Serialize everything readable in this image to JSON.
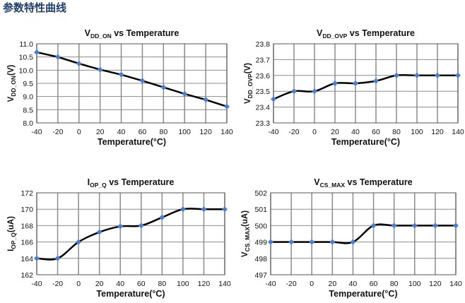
{
  "page": {
    "title": "参数特性曲线",
    "title_color": "#1f3d6b"
  },
  "style": {
    "grid_color": "#8c8c8c",
    "line_color": "#000000",
    "marker_color": "#4a7fd0"
  },
  "chart_data": [
    {
      "type": "line",
      "title": {
        "main": "V",
        "sub": "DD_ON",
        "rest": " vs Temperature"
      },
      "xlabel": "Temperature(°C)",
      "ylabel": {
        "main": "V",
        "sub": "DD_ON",
        "rest": "(V)"
      },
      "x": [
        -40,
        -20,
        0,
        20,
        40,
        60,
        80,
        100,
        120,
        140
      ],
      "y": [
        10.68,
        10.5,
        10.25,
        10.02,
        9.83,
        9.6,
        9.35,
        9.1,
        8.88,
        8.62
      ],
      "xlim": [
        -40,
        140
      ],
      "ylim": [
        8.0,
        11.0
      ],
      "xticks": [
        "-40",
        "-20",
        "0",
        "20",
        "40",
        "60",
        "80",
        "100",
        "120",
        "140"
      ],
      "yticks": [
        "8.0",
        "8.5",
        "9.0",
        "9.5",
        "10.0",
        "10.5",
        "11.0"
      ],
      "grid": true,
      "smooth": false
    },
    {
      "type": "line",
      "title": {
        "main": "V",
        "sub": "DD_OVP",
        "rest": " vs Temperature"
      },
      "xlabel": "Temperature(°C)",
      "ylabel": {
        "main": "V",
        "sub": "DD_OVP",
        "rest": "(V)"
      },
      "x": [
        -40,
        -20,
        0,
        20,
        40,
        60,
        80,
        100,
        120,
        140
      ],
      "y": [
        23.45,
        23.5,
        23.5,
        23.55,
        23.55,
        23.565,
        23.6,
        23.6,
        23.6,
        23.6
      ],
      "xlim": [
        -40,
        140
      ],
      "ylim": [
        23.3,
        23.8
      ],
      "xticks": [
        "-40",
        "-20",
        "0",
        "20",
        "40",
        "60",
        "80",
        "100",
        "120",
        "140"
      ],
      "yticks": [
        "23.3",
        "23.4",
        "23.5",
        "23.6",
        "23.7",
        "23.8"
      ],
      "grid": true,
      "smooth": true
    },
    {
      "type": "line",
      "title": {
        "main": "I",
        "sub": "OP_Q",
        "rest": " vs Temperature"
      },
      "xlabel": "Temperature(°C)",
      "ylabel": {
        "main": "I",
        "sub": "OP_Q",
        "rest": "(uA)"
      },
      "x": [
        -40,
        -20,
        0,
        20,
        40,
        60,
        80,
        100,
        120,
        140
      ],
      "y": [
        164,
        164,
        166,
        167.2,
        167.9,
        168,
        169,
        170,
        170,
        170
      ],
      "xlim": [
        -40,
        140
      ],
      "ylim": [
        162,
        172
      ],
      "xticks": [
        "-40",
        "-20",
        "0",
        "20",
        "40",
        "60",
        "80",
        "100",
        "120",
        "140"
      ],
      "yticks": [
        "162",
        "164",
        "166",
        "168",
        "170",
        "172"
      ],
      "grid": true,
      "smooth": true
    },
    {
      "type": "line",
      "title": {
        "main": "V",
        "sub": "CS_MAX",
        "rest": " vs Temperature"
      },
      "xlabel": "Temperature(°C)",
      "ylabel": {
        "main": "V",
        "sub": "CS_MAX",
        "rest": "(uA)"
      },
      "x": [
        -40,
        -20,
        0,
        20,
        40,
        60,
        80,
        100,
        120,
        140
      ],
      "y": [
        499,
        499,
        499,
        499,
        499,
        500,
        500,
        500,
        500,
        500
      ],
      "xlim": [
        -40,
        140
      ],
      "ylim": [
        497,
        502
      ],
      "xticks": [
        "-40",
        "-20",
        "0",
        "20",
        "40",
        "60",
        "80",
        "100",
        "120",
        "140"
      ],
      "yticks": [
        "497",
        "498",
        "499",
        "500",
        "501",
        "502"
      ],
      "grid": true,
      "smooth": true
    }
  ]
}
